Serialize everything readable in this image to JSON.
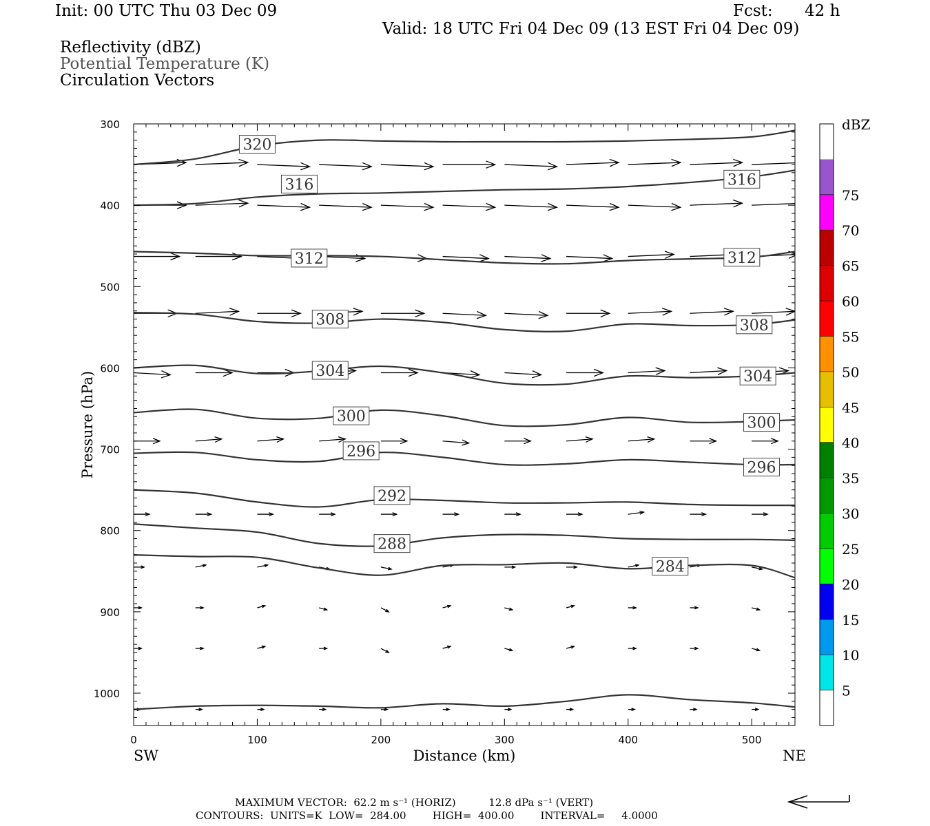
{
  "header": {
    "init": "Init: 00 UTC Thu 03 Dec 09",
    "fcst_label": "Fcst:",
    "fcst_hours": "42 h",
    "valid": "Valid: 18 UTC Fri 04 Dec 09 (13 EST Fri 04 Dec 09)"
  },
  "fields": [
    "Reflectivity (dBZ)",
    "Potential Temperature (K)",
    "Circulation Vectors"
  ],
  "colorbar": {
    "unit": "dBZ",
    "labels": [
      "5",
      "10",
      "15",
      "20",
      "25",
      "30",
      "35",
      "40",
      "45",
      "50",
      "55",
      "60",
      "65",
      "70",
      "75"
    ],
    "colors": [
      "#ffffff",
      "#00e6e6",
      "#0099ee",
      "#0000ee",
      "#00ff00",
      "#00cc00",
      "#009900",
      "#008000",
      "#ffff00",
      "#e6c000",
      "#ff9100",
      "#ff0000",
      "#dd0000",
      "#bb0000",
      "#ff00ff",
      "#9955cc",
      "#ffffff"
    ]
  },
  "footer": {
    "max_vector": "MAXIMUM VECTOR:  62.2 m s⁻¹ (HORIZ)          12.8 dPa s⁻¹ (VERT)",
    "contours": "CONTOURS:  UNITS=K  LOW=  284.00        HIGH=  400.00        INTERVAL=     4.0000"
  },
  "chart_data": {
    "type": "line",
    "xlabel": "Distance (km)",
    "ylabel": "Pressure (hPa)",
    "x_endpoint_labels": [
      "SW",
      "NE"
    ],
    "xlim": [
      0,
      535
    ],
    "ylim": [
      300,
      1040
    ],
    "y_inverted": true,
    "x_ticks": [
      0,
      100,
      200,
      300,
      400,
      500
    ],
    "y_ticks": [
      300,
      400,
      500,
      600,
      700,
      800,
      900,
      1000
    ],
    "x": [
      0,
      50,
      100,
      150,
      200,
      250,
      300,
      350,
      400,
      450,
      500,
      535
    ],
    "contour_labels": [
      {
        "text": "320",
        "x": 100,
        "y": 325
      },
      {
        "text": "316",
        "x": 134,
        "y": 374
      },
      {
        "text": "316",
        "x": 492,
        "y": 368
      },
      {
        "text": "312",
        "x": 142,
        "y": 465
      },
      {
        "text": "312",
        "x": 492,
        "y": 464
      },
      {
        "text": "308",
        "x": 159,
        "y": 540
      },
      {
        "text": "308",
        "x": 502,
        "y": 547
      },
      {
        "text": "304",
        "x": 159,
        "y": 603
      },
      {
        "text": "304",
        "x": 505,
        "y": 610
      },
      {
        "text": "300",
        "x": 176,
        "y": 659
      },
      {
        "text": "300",
        "x": 508,
        "y": 667
      },
      {
        "text": "296",
        "x": 184,
        "y": 702
      },
      {
        "text": "296",
        "x": 508,
        "y": 722
      },
      {
        "text": "292",
        "x": 209,
        "y": 757
      },
      {
        "text": "288",
        "x": 209,
        "y": 816
      },
      {
        "text": "284",
        "x": 434,
        "y": 844
      }
    ],
    "series": [
      {
        "name": "320",
        "values": [
          350,
          343,
          327,
          320,
          321,
          322,
          322,
          322,
          321,
          319,
          316,
          308
        ]
      },
      {
        "name": "316",
        "values": [
          400,
          398,
          390,
          386,
          385,
          383,
          381,
          380,
          377,
          372,
          365,
          357
        ]
      },
      {
        "name": "312",
        "values": [
          457,
          459,
          462,
          462,
          463,
          467,
          471,
          472,
          468,
          466,
          464,
          457
        ]
      },
      {
        "name": "308",
        "values": [
          532,
          534,
          543,
          545,
          540,
          544,
          553,
          555,
          546,
          548,
          547,
          541
        ]
      },
      {
        "name": "304",
        "values": [
          600,
          597,
          607,
          604,
          598,
          606,
          619,
          620,
          610,
          612,
          610,
          606
        ]
      },
      {
        "name": "300",
        "values": [
          655,
          651,
          662,
          662,
          652,
          659,
          671,
          670,
          661,
          667,
          666,
          664
        ]
      },
      {
        "name": "296",
        "values": [
          705,
          704,
          713,
          715,
          704,
          710,
          719,
          718,
          713,
          716,
          719,
          719
        ]
      },
      {
        "name": "292",
        "values": [
          750,
          754,
          765,
          771,
          762,
          763,
          766,
          766,
          765,
          768,
          769,
          769
        ]
      },
      {
        "name": "288",
        "values": [
          792,
          797,
          802,
          816,
          819,
          809,
          805,
          806,
          810,
          811,
          811,
          812
        ]
      },
      {
        "name": "284",
        "values": [
          830,
          832,
          833,
          846,
          855,
          843,
          842,
          840,
          847,
          843,
          843,
          858
        ]
      },
      {
        "name": "",
        "values": [
          1020,
          1016,
          1015,
          1016,
          1018,
          1013,
          1016,
          1010,
          1002,
          1008,
          1012,
          1017
        ]
      }
    ],
    "vector_rows": [
      {
        "p": 350,
        "u": [
          40,
          40,
          40,
          40,
          40,
          40,
          40,
          40,
          40,
          40,
          40,
          0
        ],
        "w": [
          -1,
          -1,
          1,
          1,
          1,
          0,
          1,
          -1,
          -1,
          -1,
          -1,
          0
        ]
      },
      {
        "p": 400,
        "u": [
          40,
          40,
          40,
          40,
          40,
          40,
          40,
          40,
          40,
          40,
          40,
          0
        ],
        "w": [
          0,
          -1,
          1,
          1,
          1,
          1,
          1,
          1,
          1,
          -1,
          -1,
          0
        ]
      },
      {
        "p": 463,
        "u": [
          35,
          35,
          35,
          35,
          35,
          35,
          35,
          35,
          35,
          35,
          35,
          0
        ],
        "w": [
          0,
          0,
          1,
          1,
          1,
          1,
          1,
          1,
          -1,
          -1,
          -1,
          0
        ]
      },
      {
        "p": 533,
        "u": [
          33,
          33,
          33,
          33,
          33,
          33,
          33,
          33,
          33,
          33,
          33,
          0
        ],
        "w": [
          0,
          -1,
          0,
          -1,
          0,
          1,
          1,
          0,
          -1,
          -1,
          -1,
          0
        ]
      },
      {
        "p": 606,
        "u": [
          28,
          28,
          28,
          28,
          28,
          28,
          28,
          28,
          28,
          28,
          28,
          0
        ],
        "w": [
          1,
          0,
          0,
          -1,
          0,
          1,
          1,
          0,
          -1,
          -1,
          -1,
          0
        ]
      },
      {
        "p": 690,
        "u": [
          20,
          20,
          20,
          20,
          20,
          20,
          20,
          20,
          20,
          20,
          20,
          0
        ],
        "w": [
          0,
          -1,
          -1,
          -1,
          0,
          1,
          0,
          -1,
          -1,
          0,
          0,
          0
        ]
      },
      {
        "p": 780,
        "u": [
          12,
          12,
          12,
          12,
          12,
          12,
          12,
          12,
          12,
          12,
          12,
          0
        ],
        "w": [
          0,
          0,
          0,
          0,
          0,
          0,
          0,
          0,
          -1,
          0,
          0,
          0
        ]
      },
      {
        "p": 845,
        "u": [
          8,
          8,
          8,
          8,
          8,
          8,
          8,
          8,
          8,
          8,
          8,
          0
        ],
        "w": [
          0,
          -1,
          -1,
          1,
          1,
          -1,
          0,
          0,
          -1,
          -1,
          1,
          0
        ]
      },
      {
        "p": 895,
        "u": [
          6,
          6,
          6,
          6,
          6,
          6,
          6,
          6,
          6,
          6,
          6,
          0
        ],
        "w": [
          0,
          0,
          -1,
          1,
          2,
          -1,
          1,
          -1,
          0,
          0,
          1,
          0
        ]
      },
      {
        "p": 945,
        "u": [
          6,
          6,
          6,
          6,
          6,
          6,
          6,
          6,
          6,
          6,
          6,
          0
        ],
        "w": [
          0,
          0,
          -1,
          0,
          2,
          -1,
          1,
          -1,
          0,
          0,
          1,
          0
        ]
      },
      {
        "p": 1020,
        "u": [
          5,
          5,
          5,
          5,
          5,
          5,
          5,
          5,
          5,
          5,
          5,
          0
        ],
        "w": [
          0,
          0,
          0,
          0,
          0,
          0,
          0,
          0,
          0,
          0,
          0,
          0
        ]
      }
    ]
  }
}
